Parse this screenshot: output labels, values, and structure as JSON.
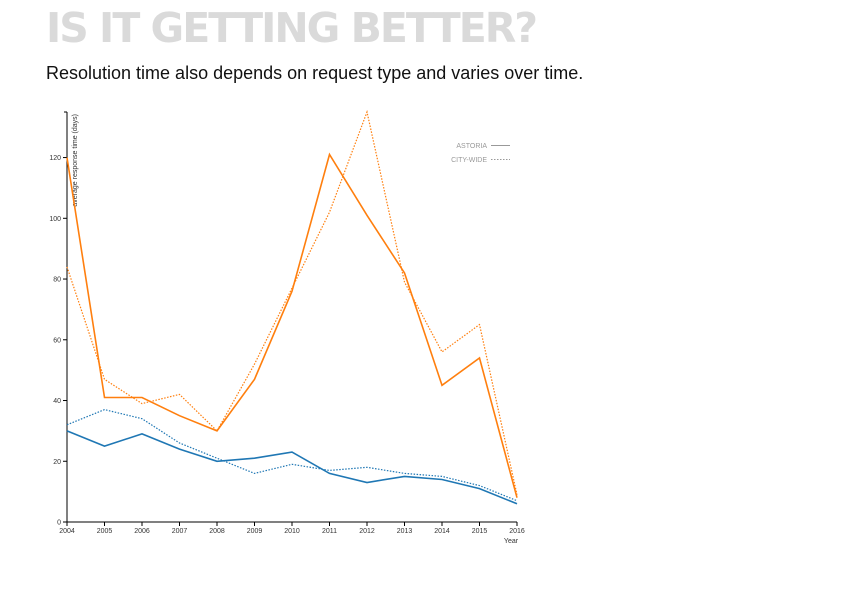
{
  "header": {
    "title": "IS IT GETTING BETTER?",
    "subtitle": "Resolution time also depends on request type and varies over time."
  },
  "chart_data": {
    "type": "line",
    "title": "",
    "xlabel": "Year",
    "ylabel": "average response time (days)",
    "x": [
      2004,
      2005,
      2006,
      2007,
      2008,
      2009,
      2010,
      2011,
      2012,
      2013,
      2014,
      2015,
      2016
    ],
    "xlim": [
      2004,
      2016
    ],
    "ylim": [
      0,
      135
    ],
    "yticks": [
      0,
      20,
      40,
      60,
      80,
      100,
      120
    ],
    "grid": false,
    "legend_position": "top-right",
    "legend": [
      {
        "label": "ASTORIA",
        "style": "solid"
      },
      {
        "label": "CITY-WIDE",
        "style": "dotted"
      }
    ],
    "series": [
      {
        "group": "ASTORIA",
        "color": "#ff7f0e",
        "style": "solid",
        "values": [
          120,
          41,
          41,
          35,
          30,
          47,
          76,
          121,
          101,
          82,
          45,
          54,
          8
        ]
      },
      {
        "group": "CITY-WIDE",
        "color": "#ff7f0e",
        "style": "dotted",
        "values": [
          84,
          47,
          39,
          42,
          30,
          52,
          77,
          102,
          135,
          79,
          56,
          65,
          9
        ]
      },
      {
        "group": "ASTORIA",
        "color": "#1f77b4",
        "style": "solid",
        "values": [
          30,
          25,
          29,
          24,
          20,
          21,
          23,
          16,
          13,
          15,
          14,
          11,
          6
        ]
      },
      {
        "group": "CITY-WIDE",
        "color": "#1f77b4",
        "style": "dotted",
        "values": [
          32,
          37,
          34,
          26,
          21,
          16,
          19,
          17,
          18,
          16,
          15,
          12,
          7
        ]
      }
    ]
  }
}
